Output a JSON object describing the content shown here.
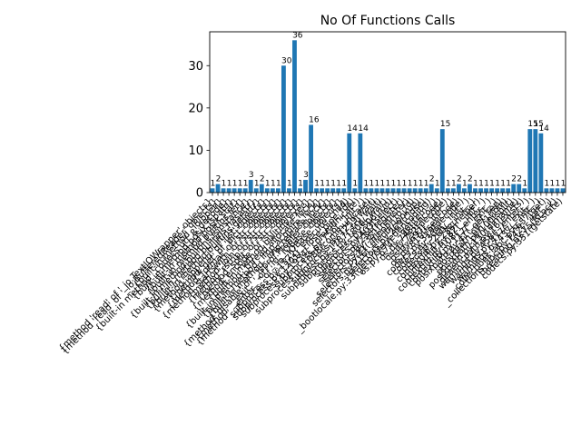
{
  "chart_data": {
    "type": "bar",
    "title": "No Of Functions Calls",
    "xlabel": "",
    "ylabel": "",
    "ylim": [
      0,
      38
    ],
    "yticks": [
      0,
      10,
      20,
      30
    ],
    "bar_color": "#1f77b4",
    "grid": false,
    "values": [
      1,
      2,
      1,
      1,
      1,
      1,
      1,
      3,
      1,
      2,
      1,
      1,
      1,
      30,
      1,
      36,
      1,
      3,
      16,
      1,
      1,
      1,
      1,
      1,
      1,
      14,
      1,
      14,
      1,
      1,
      1,
      1,
      1,
      1,
      1,
      1,
      1,
      1,
      1,
      1,
      2,
      1,
      15,
      1,
      1,
      2,
      1,
      2,
      1,
      1,
      1,
      1,
      1,
      1,
      1,
      2,
      2,
      1,
      15,
      15,
      14,
      1,
      1,
      1,
      1
    ],
    "categories": [
      "{method 'read' of '_io.TextIOWrapper' objects}",
      "{method 'read' of '_io.BufferedReader' objects}",
      "{built-in method _io.open}",
      "{built-in method _codecs.utf_8_decode}",
      "{built-in method posix.fspath}",
      "{built-in method posix.stat}",
      "{built-in method builtins.len}",
      "{built-in method builtins.isinstance}",
      "{built-in method builtins.hasattr}",
      "{built-in method builtins.getattr}",
      "{method 'append' of 'list' objects}",
      "{method 'get' of 'dict' objects}",
      "{method 'format' of 'str' objects}",
      "{method 'startswith' of 'str' objects}",
      "{method 'join' of 'str' objects}",
      "{method 'rstrip' of 'str' objects}",
      "{method 'split' of 'str' objects}",
      "{method 'encode' of 'str' objects}",
      "{built-in method builtins.exec}",
      "{built-in method _thread.allocate_lock}",
      "{built-in method _imp.acquire_lock}",
      "{built-in method _imp.release_lock}",
      "{method 'disable' of '_lsprof.Profiler' objects}",
      "{method '__exit__' of '_io._IOBase' objects}",
      "{method '__enter__' of '_io._IOBase' objects}",
      "subprocess.py:1572(_execute_child)",
      "subprocess.py:1201(_close_pipe_fds)",
      "subprocess.py:1934(_communicate)",
      "subprocess.py:756(__init__)",
      "subprocess.py:1088(communicate)",
      "subprocess.py:1259(wait)",
      "subprocess.py:1787(_try_wait)",
      "subprocess.py:1800(_wait)",
      "subprocess.py:506(run)",
      "selectors.py:403(select)",
      "selectors.py:234(register)",
      "selectors.py:351(register)",
      "selectors.py:21(_fileobj_to_fd)",
      "selectors.py:216(_fileobj_lookup)",
      "selectors.py:269(close)",
      "_bootlocale.py:33(getpreferredencoding)",
      "os.py:674(__getitem__)",
      "os.py:748(encode)",
      "os.py:752(decode)",
      "os.py:697(__iter__)",
      "os.py:810(fsencode)",
      "codecs.py:319(decode)",
      "codecs.py:309(__init__)",
      "codecs.py:260(__init__)",
      "contextlib.py:238(helper)",
      "contextlib.py:82(__init__)",
      "contextlib.py:108(__enter__)",
      "contextlib.py:117(__exit__)",
      "posixpath.py:41(_get_sep)",
      "posixpath.py:71(join)",
      "posixpath.py:100(split)",
      "posixpath.py:150(dirname)",
      "genericpath.py:16(exists)",
      "warnings.py:458(__enter__)",
      "warnings.py:477(__exit__)",
      "warnings.py:437(__init__)",
      "_collections_abc.py:657(get)",
      "_collections_abc.py:742(__iter__)",
      "threading.py:75(RLock)",
      "codecs.py:331(getstate)"
    ]
  }
}
